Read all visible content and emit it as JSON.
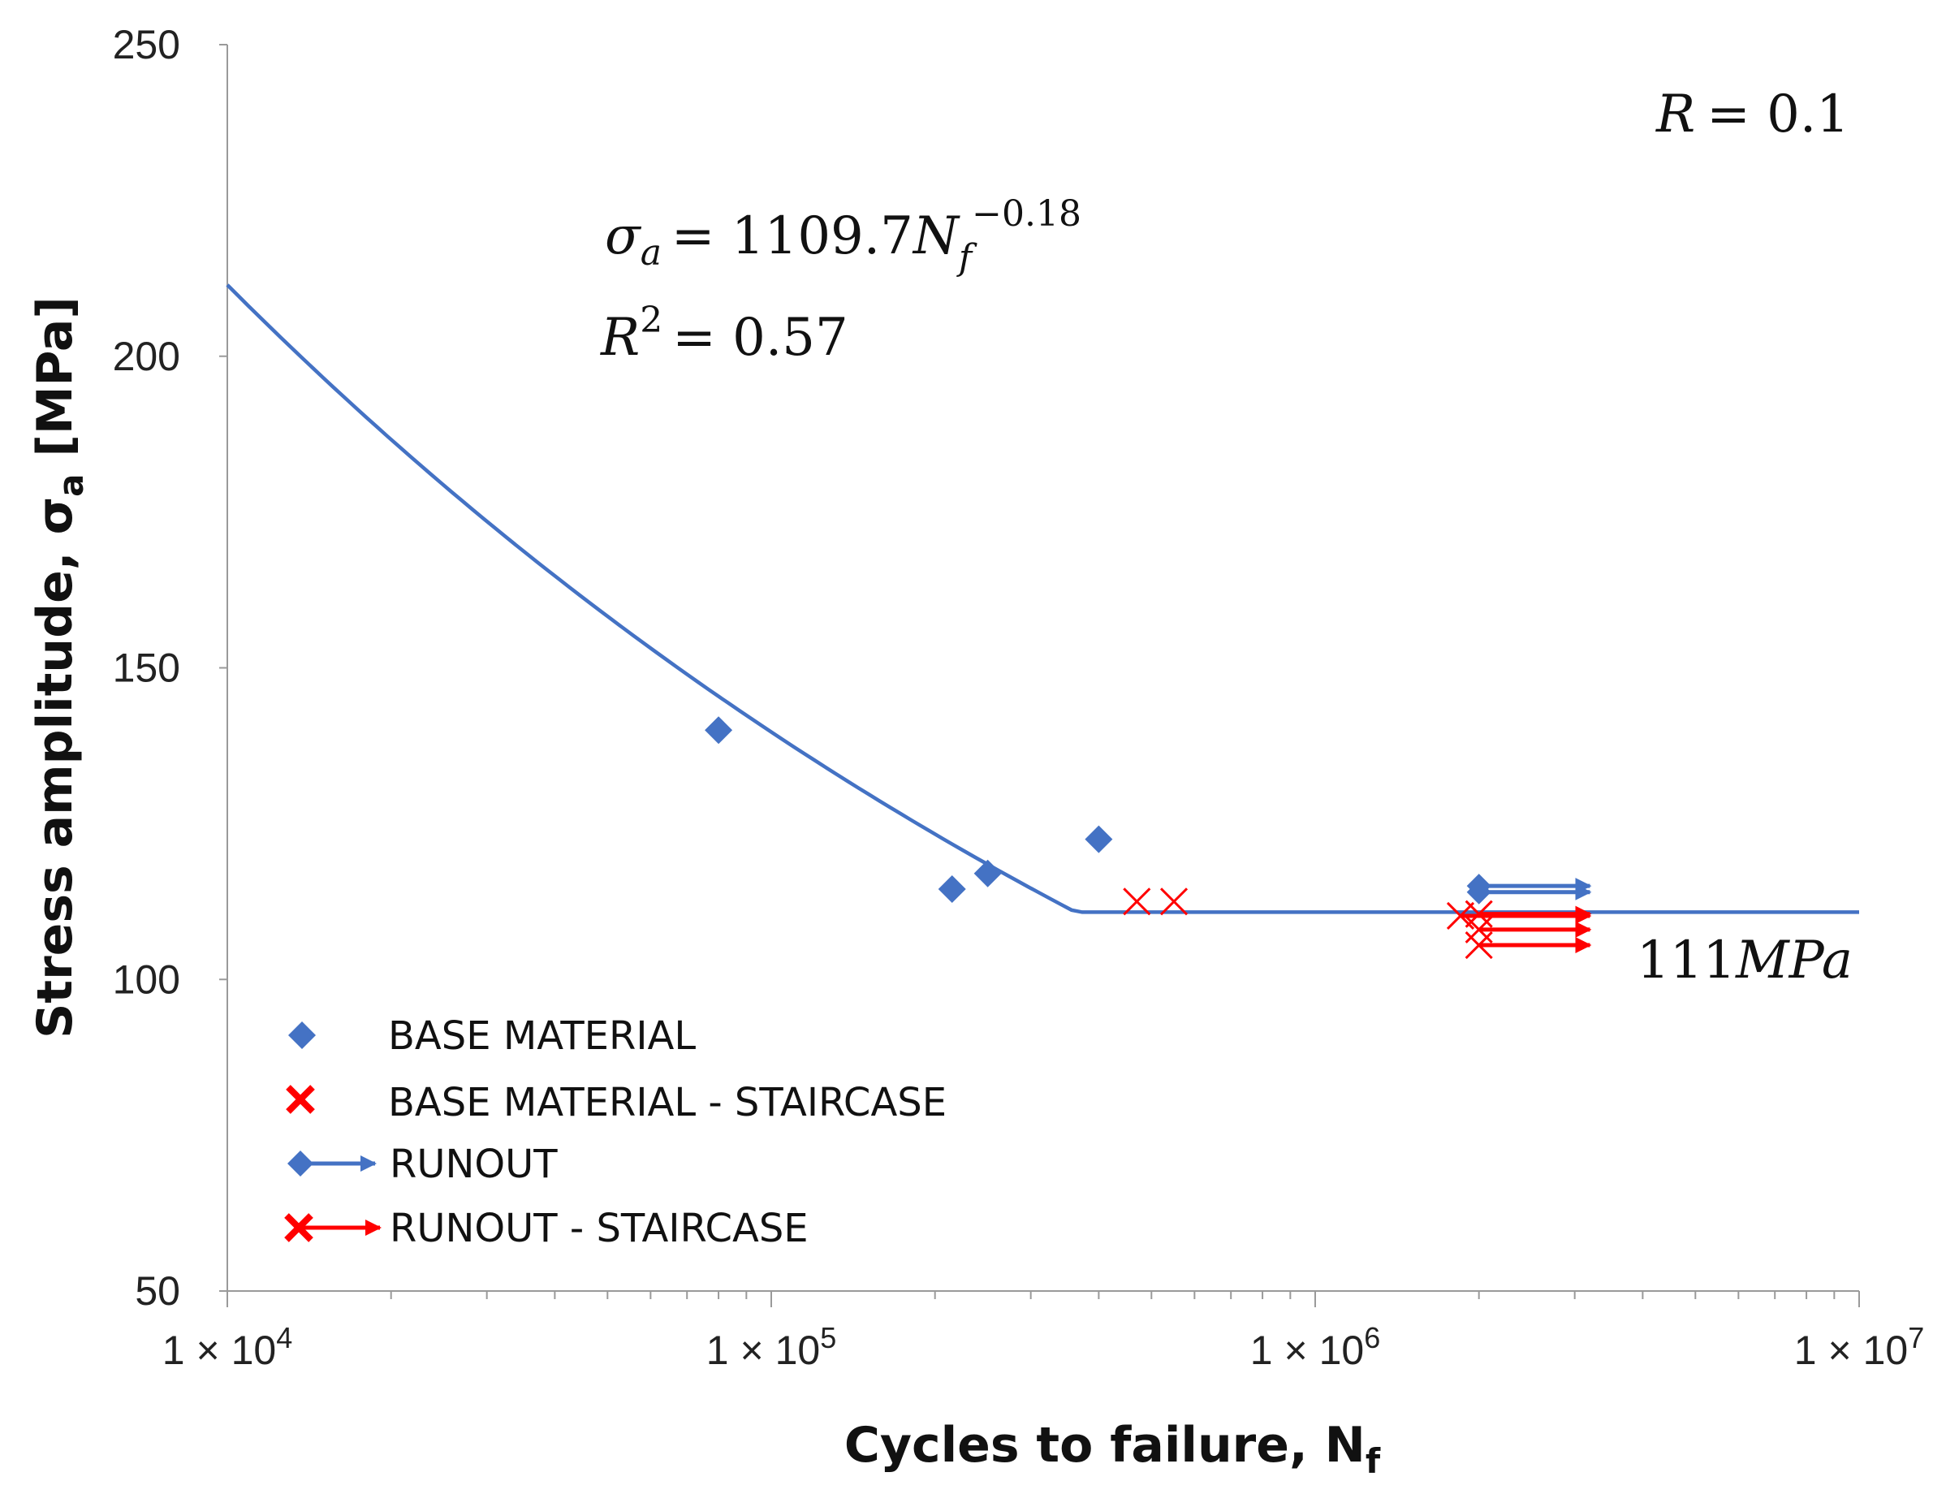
{
  "colors": {
    "blue": "#4472C4",
    "red": "#FF0000",
    "axis": "#9a9a9a",
    "text": "#111111"
  },
  "chart_data": {
    "type": "scatter",
    "xscale": "log",
    "xlim": [
      10000,
      10000000
    ],
    "ylim": [
      50,
      250
    ],
    "x_ticks": [
      {
        "value": 10000,
        "label": "1 × 10",
        "exp": "4"
      },
      {
        "value": 100000,
        "label": "1 × 10",
        "exp": "5"
      },
      {
        "value": 1000000,
        "label": "1 × 10",
        "exp": "6"
      },
      {
        "value": 10000000,
        "label": "1 × 10",
        "exp": "7"
      }
    ],
    "y_ticks": [
      50,
      100,
      150,
      200,
      250
    ],
    "xlabel": {
      "main": "Cycles to failure, N",
      "sub": "f"
    },
    "ylabel": {
      "main": "Stress amplitude, σ",
      "sub": "a",
      "unit": " [MPa]"
    },
    "series": [
      {
        "name": "BASE MATERIAL",
        "marker": "diamond",
        "points": [
          {
            "x": 80000,
            "y": 140
          },
          {
            "x": 215000,
            "y": 114.5
          },
          {
            "x": 250000,
            "y": 117
          },
          {
            "x": 400000,
            "y": 122.5
          }
        ]
      },
      {
        "name": "BASE MATERIAL - STAIRCASE",
        "marker": "x",
        "points": [
          {
            "x": 470000,
            "y": 112.5
          },
          {
            "x": 550000,
            "y": 112.5
          }
        ]
      },
      {
        "name": "RUNOUT",
        "marker": "diamond-arrow",
        "points": [
          {
            "x": 2000000,
            "y": 115
          },
          {
            "x": 2000000,
            "y": 114
          }
        ],
        "arrow_to": 3200000
      },
      {
        "name": "RUNOUT - STAIRCASE",
        "marker": "x-arrow",
        "points": [
          {
            "x": 1850000,
            "y": 110.2
          },
          {
            "x": 2000000,
            "y": 110.5
          },
          {
            "x": 2000000,
            "y": 108
          },
          {
            "x": 2000000,
            "y": 105.5
          }
        ],
        "arrow_to": 3200000
      }
    ],
    "fit_curve": {
      "formula": "σa = 1109.7 Nf^-0.18",
      "a": 1109.7,
      "b": -0.18,
      "x_from": 10000,
      "x_knee": 373000,
      "plateau": 110.8,
      "x_to": 10000000
    },
    "annotations": {
      "equation_lhs": "σ",
      "equation_lhs_sub": "a",
      "equation_rhs": "= 1109.7",
      "equation_n": "N",
      "equation_n_sub": "f",
      "equation_exp": "−0.18",
      "r2_base": "R",
      "r2_sup": "2",
      "r2_rhs": "= 0.57",
      "ratio_label": "R",
      "ratio_rhs": "= 0.1",
      "plateau_value": "111",
      "plateau_unit": "MPa"
    },
    "legend": [
      {
        "label": "BASE MATERIAL",
        "marker": "diamond"
      },
      {
        "label": "BASE MATERIAL - STAIRCASE",
        "marker": "x"
      },
      {
        "label": "RUNOUT",
        "marker": "diamond-arrow"
      },
      {
        "label": "RUNOUT - STAIRCASE",
        "marker": "x-arrow"
      }
    ],
    "legend_position": "bottom-left"
  }
}
